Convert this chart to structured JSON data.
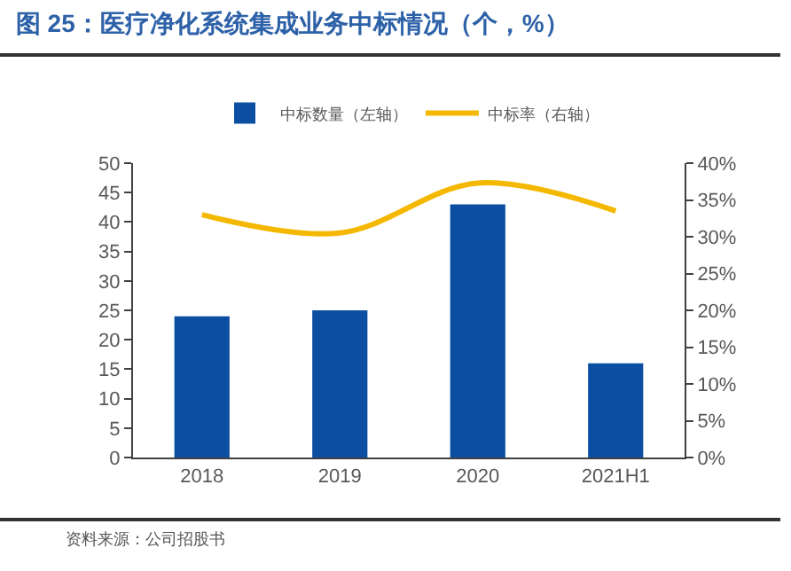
{
  "chart_data": {
    "type": "bar",
    "title": "图 25：医疗净化系统集成业务中标情况（个，%）",
    "categories": [
      "2018",
      "2019",
      "2020",
      "2021H1"
    ],
    "series": [
      {
        "name": "中标数量（左轴）",
        "color": "#0b4ea2",
        "values": [
          24,
          25,
          43,
          16
        ]
      },
      {
        "name": "中标率（右轴）",
        "type": "line",
        "axis": "y2",
        "color": "#f5b800",
        "values": [
          33,
          30.5,
          37.3,
          33.5
        ]
      }
    ],
    "ylim": [
      0,
      50
    ],
    "yticks": [
      0,
      5,
      10,
      15,
      20,
      25,
      30,
      35,
      40,
      45,
      50
    ],
    "y2lim": [
      0,
      40
    ],
    "y2ticks": [
      {
        "value": 0,
        "label": "0%"
      },
      {
        "value": 5,
        "label": "5%"
      },
      {
        "value": 10,
        "label": "10%"
      },
      {
        "value": 15,
        "label": "15%"
      },
      {
        "value": 20,
        "label": "20%"
      },
      {
        "value": 25,
        "label": "25%"
      },
      {
        "value": 30,
        "label": "30%"
      },
      {
        "value": 35,
        "label": "35%"
      },
      {
        "value": 40,
        "label": "40%"
      }
    ],
    "legend": "top",
    "grid": false,
    "annotations": [
      "资料来源：公司招股书"
    ]
  }
}
